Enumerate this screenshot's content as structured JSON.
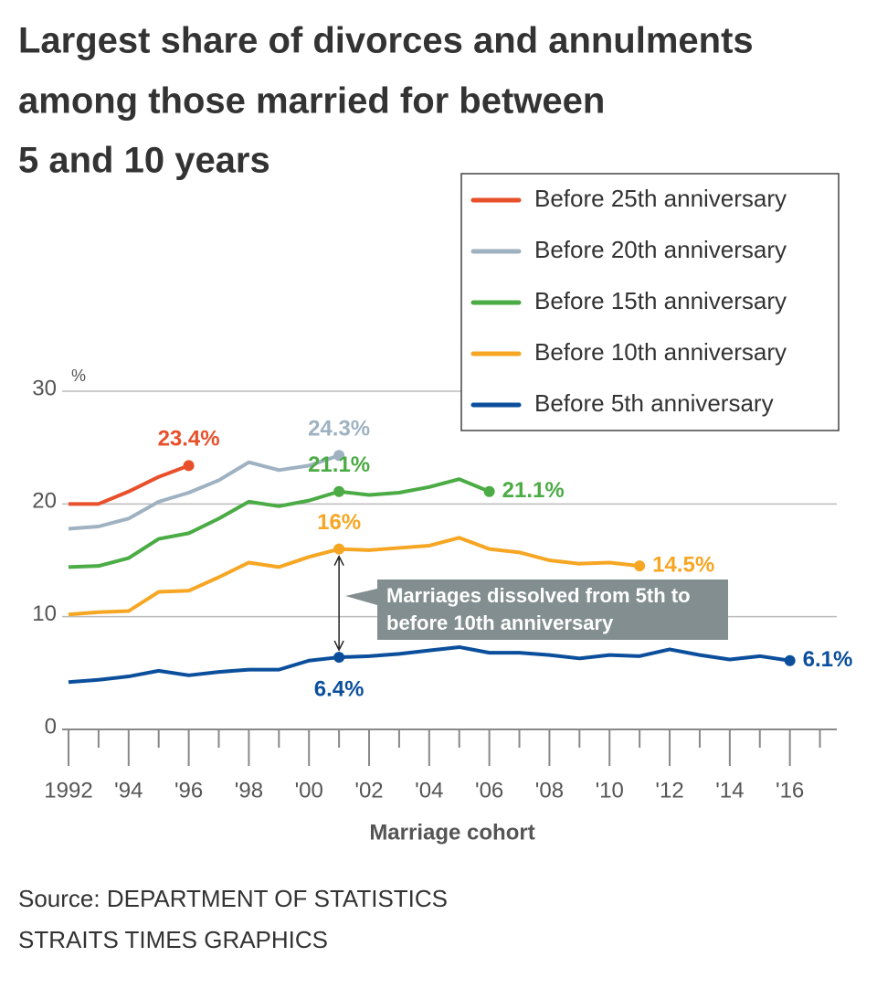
{
  "chart_data": {
    "type": "line",
    "title": [
      "Largest share of divorces and annulments",
      "among those married for between",
      "5 and 10 years"
    ],
    "y_unit": "%",
    "x_label": "Marriage cohort",
    "source": [
      "Source: DEPARTMENT OF STATISTICS",
      "STRAITS TIMES GRAPHICS"
    ],
    "annotation": [
      "Marriages dissolved from 5th to",
      "before 10th anniversary"
    ],
    "x": [
      1992,
      1993,
      1994,
      1995,
      1996,
      1997,
      1998,
      1999,
      2000,
      2001,
      2002,
      2003,
      2004,
      2005,
      2006,
      2007,
      2008,
      2009,
      2010,
      2011,
      2012,
      2013,
      2014,
      2015,
      2016
    ],
    "xlim": [
      1992,
      2017.5
    ],
    "xticks": [
      1992,
      {
        "value": 1994,
        "label": "'94"
      },
      {
        "value": 1996,
        "label": "'96"
      },
      {
        "value": 1998,
        "label": "'98"
      },
      {
        "value": 2000,
        "label": "'00"
      },
      {
        "value": 2002,
        "label": "'02"
      },
      {
        "value": 2004,
        "label": "'04"
      },
      {
        "value": 2006,
        "label": "'06"
      },
      {
        "value": 2008,
        "label": "'08"
      },
      {
        "value": 2010,
        "label": "'10"
      },
      {
        "value": 2012,
        "label": "'12"
      },
      {
        "value": 2014,
        "label": "'14"
      },
      {
        "value": 2016,
        "label": "'16"
      }
    ],
    "x_minor_ticks": [
      1993,
      1995,
      1997,
      1999,
      2001,
      2003,
      2005,
      2007,
      2009,
      2011,
      2013,
      2015,
      2017
    ],
    "ylim": [
      0,
      30
    ],
    "yticks": [
      0,
      10,
      20,
      30
    ],
    "grid": true,
    "legend": "top-right",
    "series": [
      {
        "name": "Before 25th anniversary",
        "color": "#e8502b",
        "values": [
          20.0,
          20.0,
          21.1,
          22.4,
          23.4,
          null,
          null,
          null,
          null,
          null,
          null,
          null,
          null,
          null,
          null,
          null,
          null,
          null,
          null,
          null,
          null,
          null,
          null,
          null,
          null
        ],
        "value_labels": [
          null,
          null,
          null,
          null,
          "23.4%",
          null,
          null,
          null,
          null,
          null,
          null,
          null,
          null,
          null,
          null,
          null,
          null,
          null,
          null,
          null,
          null,
          null,
          null,
          null,
          null
        ]
      },
      {
        "name": "Before 20th anniversary",
        "color": "#9fb2c2",
        "values": [
          17.8,
          18.0,
          18.7,
          20.2,
          21.0,
          22.1,
          23.7,
          23.0,
          23.4,
          24.3,
          null,
          null,
          null,
          null,
          null,
          null,
          null,
          null,
          null,
          null,
          null,
          null,
          null,
          null,
          null
        ],
        "value_labels": [
          null,
          null,
          null,
          null,
          null,
          null,
          null,
          null,
          null,
          "24.3%",
          null,
          null,
          null,
          null,
          null,
          null,
          null,
          null,
          null,
          null,
          null,
          null,
          null,
          null,
          null
        ]
      },
      {
        "name": "Before 15th anniversary",
        "color": "#4bab44",
        "values": [
          14.4,
          14.5,
          15.2,
          16.9,
          17.4,
          18.7,
          20.2,
          19.8,
          20.3,
          21.1,
          20.8,
          21.0,
          21.5,
          22.2,
          21.1,
          null,
          null,
          null,
          null,
          null,
          null,
          null,
          null,
          null,
          null
        ],
        "value_labels": [
          null,
          null,
          null,
          null,
          null,
          null,
          null,
          null,
          null,
          "21.1%",
          null,
          null,
          null,
          null,
          "21.1%",
          null,
          null,
          null,
          null,
          null,
          null,
          null,
          null,
          null,
          null
        ]
      },
      {
        "name": "Before 10th anniversary",
        "color": "#f6a623",
        "values": [
          10.2,
          10.4,
          10.5,
          12.2,
          12.3,
          13.5,
          14.8,
          14.4,
          15.3,
          16,
          15.9,
          16.1,
          16.3,
          17.0,
          16.0,
          15.7,
          15.0,
          14.7,
          14.8,
          14.5,
          null,
          null,
          null,
          null,
          null
        ],
        "value_labels": [
          null,
          null,
          null,
          null,
          null,
          null,
          null,
          null,
          null,
          "16%",
          null,
          null,
          null,
          null,
          null,
          null,
          null,
          null,
          null,
          "14.5%",
          null,
          null,
          null,
          null,
          null
        ]
      },
      {
        "name": "Before 5th anniversary",
        "color": "#0b4f9c",
        "values": [
          4.2,
          4.4,
          4.7,
          5.2,
          4.8,
          5.1,
          5.3,
          5.3,
          6.1,
          6.4,
          6.5,
          6.7,
          7.0,
          7.3,
          6.8,
          6.8,
          6.6,
          6.3,
          6.6,
          6.5,
          7.1,
          6.6,
          6.2,
          6.5,
          6.1
        ],
        "value_labels": [
          null,
          null,
          null,
          null,
          null,
          null,
          null,
          null,
          null,
          "6.4%",
          null,
          null,
          null,
          null,
          null,
          null,
          null,
          null,
          null,
          null,
          null,
          null,
          null,
          null,
          "6.1%"
        ]
      }
    ]
  }
}
